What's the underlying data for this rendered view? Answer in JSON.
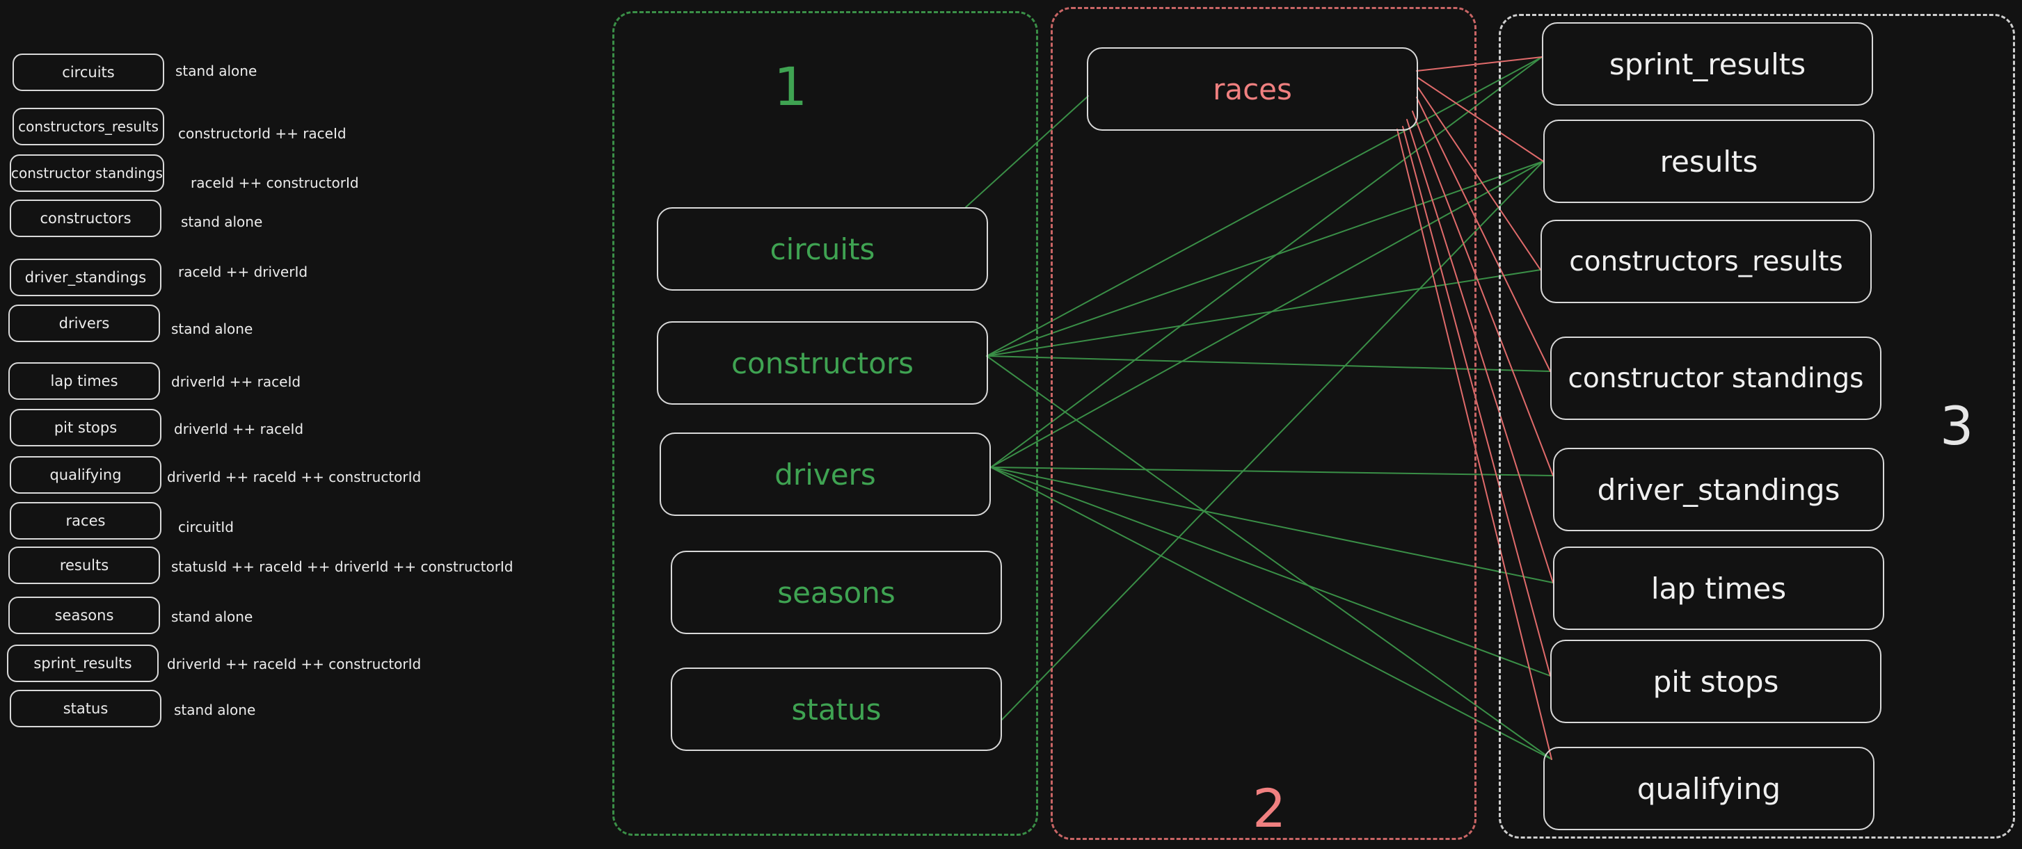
{
  "legend": [
    {
      "name": "circuits",
      "note": "stand alone"
    },
    {
      "name": "constructors_results",
      "note": "constructorId ++ raceId"
    },
    {
      "name": "constructor standings",
      "note": "raceId ++ constructorId"
    },
    {
      "name": "constructors",
      "note": "stand alone"
    },
    {
      "name": "driver_standings",
      "note": "raceId ++ driverId"
    },
    {
      "name": "drivers",
      "note": "stand alone"
    },
    {
      "name": "lap times",
      "note": "driverId ++ raceId"
    },
    {
      "name": "pit stops",
      "note": "driverId ++ raceId"
    },
    {
      "name": "qualifying",
      "note": "driverId ++ raceId ++ constructorId"
    },
    {
      "name": "races",
      "note": "circuitId"
    },
    {
      "name": "results",
      "note": "statusId ++ raceId ++ driverId ++ constructorId"
    },
    {
      "name": "seasons",
      "note": "stand alone"
    },
    {
      "name": "sprint_results",
      "note": "driverId ++ raceId ++ constructorId"
    },
    {
      "name": "status",
      "note": "stand alone"
    }
  ],
  "groups": {
    "group1": {
      "number": "1",
      "tables": [
        "circuits",
        "constructors",
        "drivers",
        "seasons",
        "status"
      ]
    },
    "group2": {
      "number": "2",
      "tables": [
        "races"
      ]
    },
    "group3": {
      "number": "3",
      "tables": [
        "sprint_results",
        "results",
        "constructors_results",
        "constructor standings",
        "driver_standings",
        "lap times",
        "pit stops",
        "qualifying"
      ]
    }
  },
  "colors": {
    "group1": "#3fa352",
    "group2": "#f08080",
    "group3": "#e6e6e6",
    "green_edge": "#3a8f47",
    "red_edge": "#e06b6b",
    "background": "#121212"
  },
  "edges": [
    {
      "from": "circuits",
      "to": "races",
      "color": "green"
    },
    {
      "from": "constructors",
      "to": "sprint_results",
      "color": "green"
    },
    {
      "from": "constructors",
      "to": "results",
      "color": "green"
    },
    {
      "from": "constructors",
      "to": "constructors_results",
      "color": "green"
    },
    {
      "from": "constructors",
      "to": "constructor standings",
      "color": "green"
    },
    {
      "from": "constructors",
      "to": "qualifying",
      "color": "green"
    },
    {
      "from": "drivers",
      "to": "sprint_results",
      "color": "green"
    },
    {
      "from": "drivers",
      "to": "results",
      "color": "green"
    },
    {
      "from": "drivers",
      "to": "driver_standings",
      "color": "green"
    },
    {
      "from": "drivers",
      "to": "lap times",
      "color": "green"
    },
    {
      "from": "drivers",
      "to": "pit stops",
      "color": "green"
    },
    {
      "from": "drivers",
      "to": "qualifying",
      "color": "green"
    },
    {
      "from": "status",
      "to": "results",
      "color": "green"
    },
    {
      "from": "races",
      "to": "sprint_results",
      "color": "red"
    },
    {
      "from": "races",
      "to": "results",
      "color": "red"
    },
    {
      "from": "races",
      "to": "constructors_results",
      "color": "red"
    },
    {
      "from": "races",
      "to": "constructor standings",
      "color": "red"
    },
    {
      "from": "races",
      "to": "driver_standings",
      "color": "red"
    },
    {
      "from": "races",
      "to": "lap times",
      "color": "red"
    },
    {
      "from": "races",
      "to": "pit stops",
      "color": "red"
    },
    {
      "from": "races",
      "to": "qualifying",
      "color": "red"
    }
  ]
}
